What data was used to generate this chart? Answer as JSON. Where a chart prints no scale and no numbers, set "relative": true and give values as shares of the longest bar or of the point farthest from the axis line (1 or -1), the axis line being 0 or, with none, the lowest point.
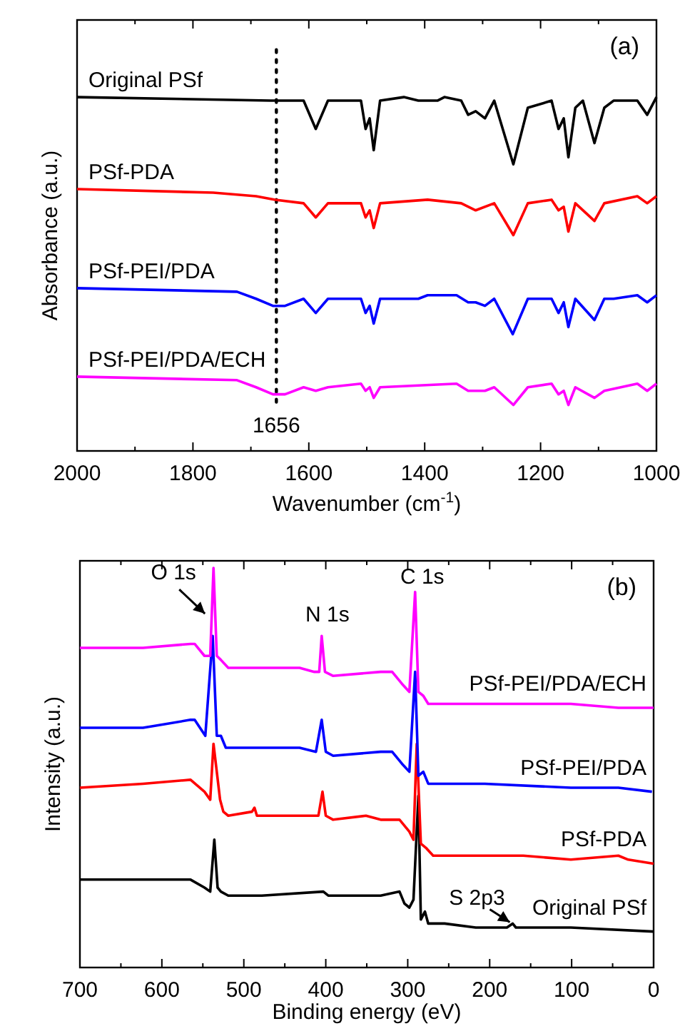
{
  "chart_data": [
    {
      "type": "line",
      "relative": true,
      "xlabel": "Wavenumber (cm$^{-1}$)",
      "ylabel": "Absorbance (a.u.)",
      "xlim": [
        2000,
        1000
      ],
      "xticks": [
        2000,
        {
          "value": 1900,
          "label": null
        },
        1800,
        {
          "value": 1700,
          "label": null
        },
        1600,
        {
          "value": 1500,
          "label": null
        },
        1400,
        {
          "value": 1300,
          "label": null
        },
        1200,
        {
          "value": 1100,
          "label": null
        },
        1000
      ],
      "line_style": "solid",
      "annotations": [
        "(a)"
      ],
      "ref_lines": [
        {
          "axis": "x",
          "value": 1656,
          "label": "1656",
          "color": "#000000",
          "line_style": "dotted"
        }
      ],
      "series": [
        {
          "name": "Original PSf",
          "color": "#000000",
          "x": [
            2000,
            1666,
            1609,
            1588,
            1567,
            1510,
            1502,
            1495,
            1488,
            1477,
            1436,
            1411,
            1395,
            1378,
            1366,
            1337,
            1325,
            1312,
            1296,
            1280,
            1247,
            1222,
            1181,
            1169,
            1160,
            1152,
            1140,
            1127,
            1107,
            1090,
            1074,
            1033,
            1016,
            1000
          ],
          "values": [
            1.0,
            0.99,
            0.99,
            0.91,
            0.99,
            0.99,
            0.91,
            0.94,
            0.85,
            0.99,
            1.0,
            0.99,
            0.99,
            0.99,
            1.0,
            0.99,
            0.95,
            0.96,
            0.94,
            0.99,
            0.81,
            0.97,
            0.99,
            0.91,
            0.94,
            0.83,
            0.97,
            0.99,
            0.87,
            0.97,
            0.99,
            0.99,
            0.95,
            1.0
          ]
        },
        {
          "name": "PSf-PDA",
          "color": "#ff0000",
          "x": [
            2000,
            1765,
            1691,
            1658,
            1609,
            1588,
            1567,
            1510,
            1502,
            1495,
            1488,
            1477,
            1395,
            1337,
            1312,
            1280,
            1247,
            1222,
            1181,
            1169,
            1160,
            1152,
            1140,
            1107,
            1090,
            1033,
            1016,
            1000
          ],
          "values": [
            0.74,
            0.73,
            0.72,
            0.71,
            0.7,
            0.66,
            0.7,
            0.7,
            0.66,
            0.68,
            0.63,
            0.7,
            0.71,
            0.7,
            0.68,
            0.7,
            0.61,
            0.7,
            0.71,
            0.68,
            0.69,
            0.62,
            0.7,
            0.65,
            0.7,
            0.72,
            0.7,
            0.72
          ]
        },
        {
          "name": "PSf-PEI/PDA",
          "color": "#0000ff",
          "x": [
            2000,
            1724,
            1691,
            1662,
            1641,
            1609,
            1588,
            1567,
            1510,
            1502,
            1495,
            1488,
            1477,
            1411,
            1395,
            1345,
            1325,
            1312,
            1296,
            1280,
            1248,
            1222,
            1181,
            1169,
            1160,
            1152,
            1140,
            1107,
            1090,
            1074,
            1033,
            1016,
            1000
          ],
          "values": [
            0.46,
            0.45,
            0.43,
            0.41,
            0.41,
            0.43,
            0.39,
            0.43,
            0.43,
            0.39,
            0.41,
            0.36,
            0.43,
            0.43,
            0.44,
            0.44,
            0.42,
            0.42,
            0.41,
            0.43,
            0.33,
            0.43,
            0.43,
            0.39,
            0.42,
            0.35,
            0.43,
            0.37,
            0.43,
            0.43,
            0.44,
            0.42,
            0.44
          ]
        },
        {
          "name": "PSf-PEI/PDA/ECH",
          "color": "#ff00ff",
          "x": [
            2000,
            1724,
            1691,
            1662,
            1641,
            1609,
            1588,
            1567,
            1510,
            1502,
            1495,
            1488,
            1477,
            1345,
            1325,
            1296,
            1280,
            1247,
            1222,
            1181,
            1169,
            1160,
            1152,
            1140,
            1107,
            1090,
            1033,
            1016,
            1000
          ],
          "values": [
            0.21,
            0.2,
            0.18,
            0.16,
            0.16,
            0.18,
            0.17,
            0.18,
            0.19,
            0.17,
            0.18,
            0.15,
            0.18,
            0.19,
            0.17,
            0.17,
            0.18,
            0.13,
            0.18,
            0.19,
            0.16,
            0.17,
            0.13,
            0.18,
            0.15,
            0.17,
            0.19,
            0.17,
            0.19
          ]
        }
      ]
    },
    {
      "type": "line",
      "relative": true,
      "xlabel": "Binding energy (eV)",
      "ylabel": "Intensity (a.u.)",
      "xlim": [
        700,
        0
      ],
      "xticks": [
        700,
        {
          "value": 650,
          "label": null
        },
        600,
        {
          "value": 550,
          "label": null
        },
        500,
        {
          "value": 450,
          "label": null
        },
        400,
        {
          "value": 350,
          "label": null
        },
        300,
        {
          "value": 250,
          "label": null
        },
        200,
        {
          "value": 150,
          "label": null
        },
        100,
        {
          "value": 50,
          "label": null
        },
        0
      ],
      "line_style": "solid",
      "annotations": [
        "(b)",
        {
          "text": "O 1s",
          "x": 537,
          "y": 1.0
        },
        {
          "text": "N 1s",
          "x": 405,
          "y": 0.83
        },
        {
          "text": "C 1s",
          "x": 291,
          "y": 0.94
        },
        {
          "text": "S 2p3",
          "x": 172,
          "y": 0.11
        }
      ],
      "series": [
        {
          "name": "Original PSf",
          "color": "#000000",
          "x": [
            700,
            623,
            565,
            548,
            541,
            536,
            532,
            528,
            519,
            478,
            403,
            397,
            333,
            310,
            304,
            298,
            293,
            287,
            284,
            279,
            275,
            255,
            217,
            179,
            172,
            168,
            101,
            0
          ],
          "values": [
            0.22,
            0.22,
            0.22,
            0.2,
            0.19,
            0.32,
            0.2,
            0.19,
            0.18,
            0.18,
            0.19,
            0.18,
            0.18,
            0.19,
            0.16,
            0.15,
            0.17,
            0.43,
            0.12,
            0.14,
            0.11,
            0.11,
            0.1,
            0.1,
            0.11,
            0.1,
            0.1,
            0.09
          ]
        },
        {
          "name": "PSf-PDA",
          "color": "#ff0000",
          "x": [
            700,
            623,
            565,
            548,
            541,
            537,
            529,
            525,
            519,
            490,
            487,
            484,
            449,
            409,
            404,
            400,
            391,
            351,
            333,
            322,
            310,
            298,
            293,
            289,
            284,
            278,
            269,
            217,
            159,
            101,
            43,
            31,
            0
          ],
          "values": [
            0.45,
            0.46,
            0.47,
            0.44,
            0.42,
            0.56,
            0.42,
            0.39,
            0.38,
            0.39,
            0.4,
            0.38,
            0.38,
            0.38,
            0.44,
            0.38,
            0.37,
            0.38,
            0.37,
            0.37,
            0.37,
            0.34,
            0.32,
            0.56,
            0.31,
            0.3,
            0.28,
            0.28,
            0.28,
            0.27,
            0.28,
            0.27,
            0.26
          ]
        },
        {
          "name": "PSf-PEI/PDA",
          "color": "#0000ff",
          "x": [
            700,
            623,
            565,
            560,
            547,
            538,
            533,
            528,
            522,
            478,
            432,
            412,
            405,
            400,
            391,
            333,
            319,
            307,
            298,
            291,
            287,
            281,
            275,
            206,
            101,
            43,
            2
          ],
          "values": [
            0.6,
            0.6,
            0.62,
            0.62,
            0.58,
            0.83,
            0.58,
            0.58,
            0.55,
            0.55,
            0.55,
            0.54,
            0.62,
            0.54,
            0.53,
            0.54,
            0.54,
            0.51,
            0.49,
            0.74,
            0.48,
            0.49,
            0.46,
            0.46,
            0.45,
            0.45,
            0.44
          ]
        },
        {
          "name": "PSf-PEI/PDA/ECH",
          "color": "#ff00ff",
          "x": [
            700,
            623,
            565,
            560,
            548,
            541,
            537,
            533,
            528,
            519,
            478,
            432,
            414,
            408,
            405,
            401,
            391,
            333,
            319,
            307,
            298,
            291,
            287,
            281,
            275,
            217,
            101,
            43,
            0
          ],
          "values": [
            0.8,
            0.8,
            0.81,
            0.81,
            0.78,
            0.78,
            1.0,
            0.78,
            0.77,
            0.75,
            0.75,
            0.75,
            0.74,
            0.74,
            0.83,
            0.74,
            0.73,
            0.74,
            0.74,
            0.71,
            0.69,
            0.94,
            0.69,
            0.68,
            0.66,
            0.66,
            0.66,
            0.65,
            0.65
          ]
        }
      ]
    }
  ]
}
